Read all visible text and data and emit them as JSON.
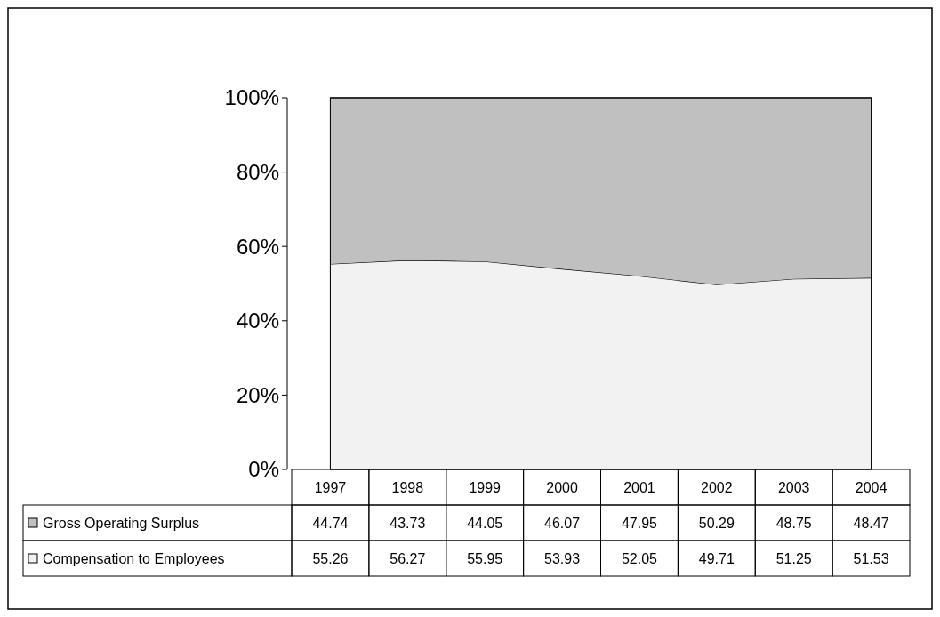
{
  "chart_data": {
    "type": "area",
    "stacked": true,
    "data_labels": true,
    "legend": "bottom",
    "categories": [
      "1997",
      "1998",
      "1999",
      "2000",
      "2001",
      "2002",
      "2003",
      "2004"
    ],
    "ylim": [
      0,
      100
    ],
    "yticks": [
      {
        "value": 0,
        "label": "0%"
      },
      {
        "value": 20,
        "label": "20%"
      },
      {
        "value": 40,
        "label": "40%"
      },
      {
        "value": 60,
        "label": "60%"
      },
      {
        "value": 80,
        "label": "80%"
      },
      {
        "value": 100,
        "label": "100%"
      }
    ],
    "series": [
      {
        "name": "Compensation to Employees",
        "color": "#f2f2f2",
        "values": [
          55.26,
          56.27,
          55.95,
          53.93,
          52.05,
          49.71,
          51.25,
          51.53
        ]
      },
      {
        "name": "Gross Operating Surplus",
        "color": "#c0c0c0",
        "values": [
          44.74,
          43.73,
          44.05,
          46.07,
          47.95,
          50.29,
          48.75,
          48.47
        ]
      }
    ]
  }
}
